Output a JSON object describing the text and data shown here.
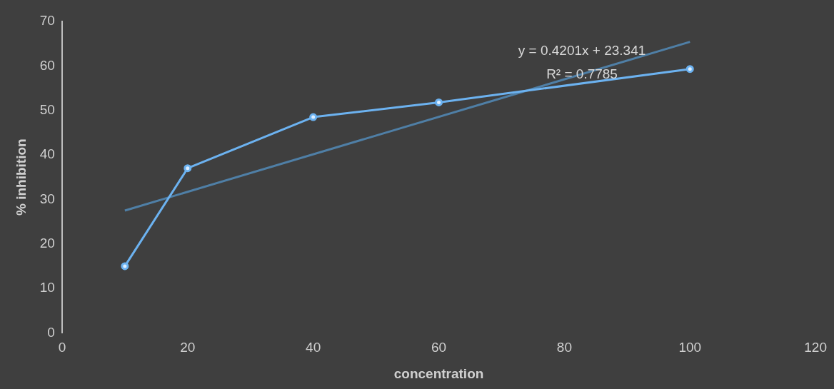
{
  "chart_data": {
    "type": "line",
    "xlabel": "concentration",
    "ylabel": "% inhibition",
    "xlim": [
      0,
      120
    ],
    "xticks": [
      0,
      20,
      40,
      60,
      80,
      100,
      120
    ],
    "ylim": [
      0,
      70
    ],
    "yticks": [
      0,
      10,
      20,
      30,
      40,
      50,
      60,
      70
    ],
    "grid": false,
    "legend": false,
    "marker": "circle",
    "line_style": "solid",
    "series": [
      {
        "color": "#6cb2f0",
        "x": [
          10,
          20,
          40,
          60,
          100
        ],
        "values": [
          15,
          37,
          48.5,
          51.8,
          59.3
        ]
      },
      {
        "type": "line",
        "marker": "none",
        "color": "#4f7fa6",
        "x": [
          10,
          100
        ],
        "values": [
          27.5,
          65.4
        ]
      }
    ],
    "annotations": [
      "y = 0.4201x + 23.341",
      "R² = 0.7785"
    ]
  }
}
